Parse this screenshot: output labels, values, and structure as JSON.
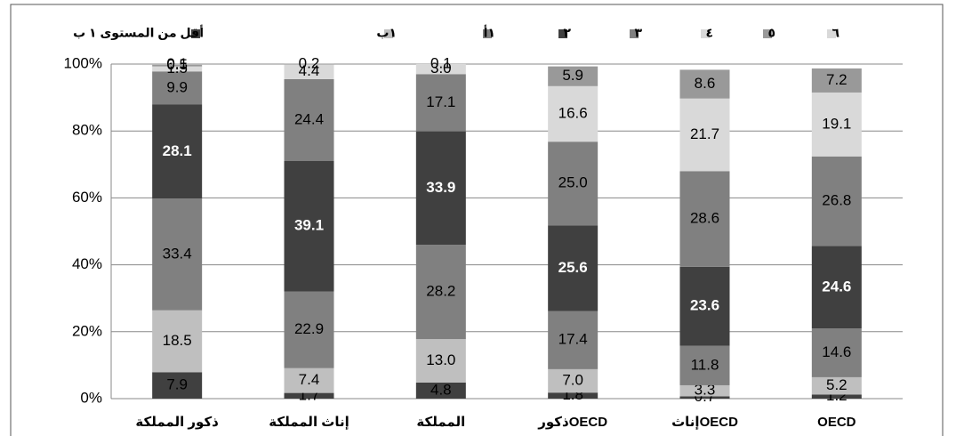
{
  "chart_data": {
    "type": "stacked_bar",
    "categories": [
      "ذكور المملكة",
      "إناث المملكة",
      "المملكة",
      "ذكورOECD",
      "إناثOECD",
      "OECD"
    ],
    "series": [
      {
        "name": "أقل من المستوى ١ ب",
        "color": "#404040",
        "values": [
          7.9,
          1.7,
          4.8,
          1.8,
          0.7,
          1.2
        ],
        "value_labels": [
          "7.9",
          "1.7",
          "4.8",
          "1.8",
          "0.7",
          "1.2"
        ]
      },
      {
        "name": "١ب",
        "color": "#bfbfbf",
        "values": [
          18.5,
          7.4,
          13.0,
          7.0,
          3.3,
          5.2
        ],
        "value_labels": [
          "18.5",
          "7.4",
          "13.0",
          "7.0",
          "3.3",
          "5.2"
        ]
      },
      {
        "name": "١أ",
        "color": "#808080",
        "values": [
          33.4,
          22.9,
          28.2,
          17.4,
          11.8,
          14.6
        ],
        "value_labels": [
          "33.4",
          "22.9",
          "28.2",
          "17.4",
          "11.8",
          "14.6"
        ]
      },
      {
        "name": "٢",
        "color": "#404040",
        "values": [
          28.1,
          39.1,
          33.9,
          25.6,
          23.6,
          24.6
        ],
        "value_labels": [
          "28.1",
          "39.1",
          "33.9",
          "25.6",
          "23.6",
          "24.6"
        ]
      },
      {
        "name": "٣",
        "color": "#808080",
        "values": [
          9.9,
          24.4,
          17.1,
          25.0,
          28.6,
          26.8
        ],
        "value_labels": [
          "9.9",
          "24.4",
          "17.1",
          "25.0",
          "28.6",
          "26.8"
        ]
      },
      {
        "name": "٤",
        "color": "#d9d9d9",
        "values": [
          1.5,
          4.4,
          3.0,
          16.6,
          21.7,
          19.1
        ],
        "value_labels": [
          "1.5",
          "4.4",
          "3.0",
          "16.6",
          "21.7",
          "19.1"
        ]
      },
      {
        "name": "٥",
        "color": "#999999",
        "values": [
          0.5,
          0.2,
          0.1,
          5.9,
          8.6,
          7.2
        ],
        "value_labels": [
          "0.5",
          "0.2",
          "0.1",
          "5.9",
          "8.6",
          "7.2"
        ]
      },
      {
        "name": "٦",
        "color": "#d9d9d9",
        "values": [
          0.1,
          null,
          null,
          null,
          null,
          null
        ],
        "value_labels": [
          "0.1",
          null,
          null,
          null,
          null,
          null
        ]
      }
    ],
    "ylim": [
      0,
      100
    ],
    "yticks": [
      {
        "value": 0,
        "label": "0%"
      },
      {
        "value": 20,
        "label": "20%"
      },
      {
        "value": 40,
        "label": "40%"
      },
      {
        "value": 60,
        "label": "60%"
      },
      {
        "value": 80,
        "label": "80%"
      },
      {
        "value": 100,
        "label": "100%"
      }
    ],
    "grid": true,
    "legend": "top"
  }
}
